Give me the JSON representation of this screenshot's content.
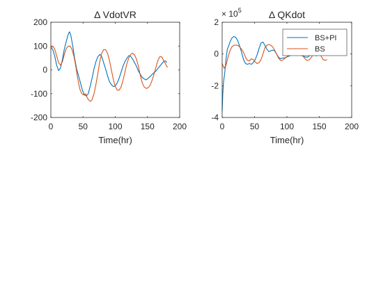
{
  "colors": {
    "series1": "#0072BD",
    "series2": "#D95319",
    "axis": "#262626"
  },
  "chart_data": [
    {
      "type": "line",
      "title": "Δ VdotVR",
      "xlabel": "Time(hr)",
      "ylabel": "",
      "xlim": [
        0,
        200
      ],
      "ylim": [
        -200,
        200
      ],
      "xticks": [
        0,
        50,
        100,
        150,
        200
      ],
      "yticks": [
        -200,
        -100,
        0,
        100,
        200
      ],
      "xtick_labels": [
        "0",
        "50",
        "100",
        "150",
        "200"
      ],
      "ytick_labels": [
        "-200",
        "-100",
        "0",
        "100",
        "200"
      ],
      "grid": false,
      "series": [
        {
          "x": [
            0,
            3,
            6,
            9,
            12,
            15,
            18,
            21,
            24,
            27,
            29,
            31,
            34,
            37,
            40,
            43,
            46,
            49,
            52,
            55,
            58,
            61,
            64,
            67,
            70,
            73,
            76,
            78,
            80,
            82,
            85,
            88,
            91,
            94,
            97,
            100,
            103,
            106,
            109,
            112,
            115,
            118,
            121,
            124,
            127,
            130,
            133,
            136,
            139,
            142,
            145,
            148,
            151,
            154,
            157,
            160,
            163,
            166,
            169,
            172,
            175,
            178,
            180
          ],
          "y": [
            95,
            85,
            60,
            20,
            -3,
            8,
            45,
            88,
            120,
            150,
            160,
            145,
            100,
            48,
            5,
            -25,
            -55,
            -85,
            -105,
            -110,
            -100,
            -70,
            -35,
            5,
            35,
            55,
            65,
            60,
            48,
            30,
            5,
            -25,
            -50,
            -62,
            -70,
            -68,
            -55,
            -35,
            -10,
            15,
            35,
            48,
            60,
            57,
            45,
            30,
            15,
            -5,
            -20,
            -32,
            -38,
            -42,
            -35,
            -28,
            -20,
            -12,
            -5,
            5,
            15,
            25,
            35,
            38,
            30
          ]
        },
        {
          "x": [
            0,
            3,
            6,
            9,
            12,
            15,
            18,
            21,
            24,
            27,
            30,
            33,
            36,
            39,
            42,
            45,
            48,
            51,
            54,
            57,
            60,
            62,
            64,
            67,
            70,
            73,
            76,
            79,
            82,
            85,
            88,
            91,
            94,
            97,
            100,
            103,
            106,
            109,
            112,
            115,
            118,
            121,
            124,
            127,
            130,
            133,
            136,
            139,
            142,
            145,
            148,
            151,
            154,
            157,
            160,
            163,
            166,
            169,
            172,
            175,
            178,
            181
          ],
          "y": [
            90,
            100,
            88,
            60,
            30,
            20,
            35,
            65,
            90,
            100,
            100,
            85,
            55,
            10,
            -40,
            -80,
            -100,
            -105,
            -100,
            -120,
            -130,
            -132,
            -125,
            -100,
            -60,
            -15,
            35,
            70,
            85,
            85,
            70,
            40,
            0,
            -40,
            -70,
            -85,
            -85,
            -72,
            -45,
            -10,
            25,
            50,
            65,
            70,
            62,
            45,
            15,
            -25,
            -55,
            -72,
            -78,
            -75,
            -65,
            -45,
            -20,
            10,
            38,
            55,
            55,
            40,
            25,
            10
          ]
        }
      ]
    },
    {
      "type": "line",
      "title": "Δ QKdot",
      "xlabel": "Time(hr)",
      "ylabel": "",
      "xlim": [
        0,
        200
      ],
      "ylim": [
        -4,
        2
      ],
      "y_multiplier": "×10^5",
      "exponent_base": "× 10",
      "exponent_power": "5",
      "xticks": [
        0,
        50,
        100,
        150,
        200
      ],
      "yticks": [
        -4,
        -2,
        0,
        2
      ],
      "xtick_labels": [
        "0",
        "50",
        "100",
        "150",
        "200"
      ],
      "ytick_labels": [
        "-4",
        "-2",
        "0",
        "2"
      ],
      "grid": false,
      "legend": {
        "position": "top-right",
        "entries": [
          "BS+PI",
          "BS"
        ]
      },
      "series": [
        {
          "name": "BS+PI",
          "x": [
            0,
            1,
            2,
            4,
            6,
            8,
            10,
            12,
            15,
            18,
            21,
            24,
            27,
            30,
            33,
            36,
            39,
            42,
            45,
            48,
            51,
            54,
            57,
            60,
            63,
            66,
            69,
            72,
            75,
            78,
            81,
            84,
            87,
            90,
            93,
            96,
            99,
            102,
            105,
            108,
            111,
            114,
            117,
            120,
            123,
            126,
            129,
            132,
            135,
            138,
            141,
            144,
            147,
            150,
            153,
            156,
            159,
            160
          ],
          "y": [
            -3.6,
            -2.5,
            -1.8,
            -1.2,
            -0.3,
            0.3,
            0.5,
            0.75,
            1.0,
            1.1,
            1.05,
            0.85,
            0.5,
            0.1,
            -0.35,
            -0.6,
            -0.65,
            -0.6,
            -0.65,
            -0.55,
            -0.35,
            -0.05,
            0.35,
            0.7,
            0.75,
            0.55,
            0.3,
            0.15,
            0.2,
            0.25,
            0.2,
            0.0,
            -0.2,
            -0.3,
            -0.25,
            -0.25,
            -0.2,
            -0.15,
            -0.1,
            0.0,
            0.1,
            0.15,
            0.1,
            0.0,
            -0.1,
            -0.15,
            -0.2,
            -0.2,
            -0.1,
            -0.05,
            -0.05,
            -0.1,
            -0.1,
            -0.05,
            0.0,
            0.05,
            0.0,
            -0.05
          ]
        },
        {
          "name": "BS",
          "x": [
            0,
            3,
            6,
            9,
            12,
            15,
            18,
            21,
            24,
            27,
            30,
            33,
            36,
            39,
            42,
            45,
            48,
            51,
            54,
            57,
            60,
            63,
            66,
            69,
            72,
            75,
            78,
            81,
            84,
            87,
            90,
            93,
            96,
            99,
            102,
            105,
            108,
            111,
            114,
            117,
            120,
            123,
            126,
            129,
            132,
            135,
            138,
            141,
            144,
            147,
            150,
            153,
            156,
            159,
            162
          ],
          "y": [
            -0.6,
            -0.9,
            -0.7,
            -0.2,
            0.2,
            0.45,
            0.55,
            0.55,
            0.55,
            0.45,
            0.3,
            0.1,
            -0.2,
            -0.4,
            -0.45,
            -0.3,
            -0.35,
            -0.5,
            -0.6,
            -0.55,
            -0.35,
            0.0,
            0.4,
            0.55,
            0.6,
            0.55,
            0.45,
            0.25,
            0.0,
            -0.25,
            -0.4,
            -0.4,
            -0.3,
            -0.2,
            -0.1,
            0.1,
            0.35,
            0.45,
            0.45,
            0.35,
            0.2,
            0.0,
            -0.2,
            -0.35,
            -0.4,
            -0.35,
            -0.2,
            0.0,
            0.15,
            0.15,
            0.05,
            -0.15,
            -0.35,
            -0.4,
            -0.35
          ]
        }
      ]
    }
  ]
}
